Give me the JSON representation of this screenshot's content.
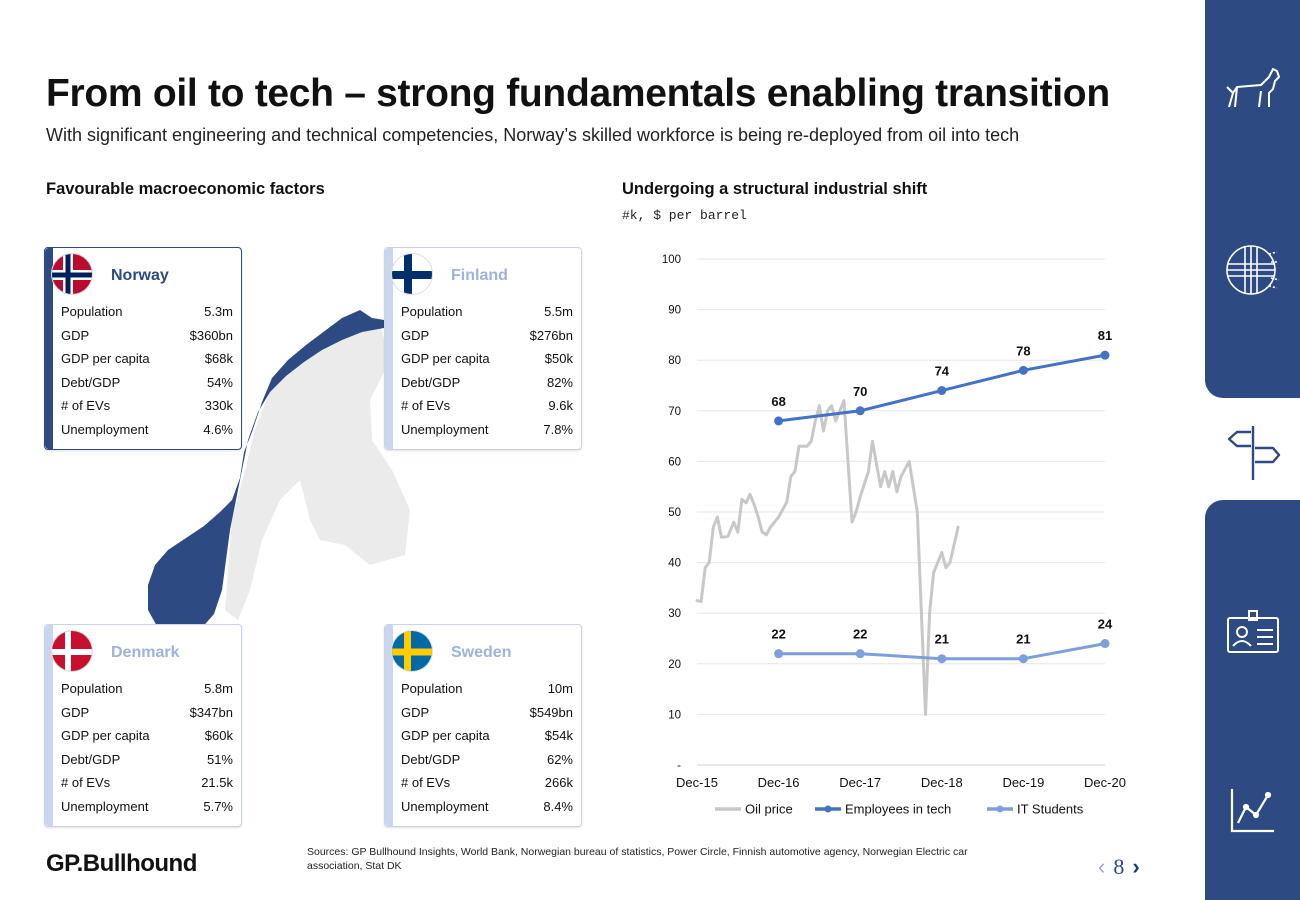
{
  "header": {
    "title": "From oil to tech – strong fundamentals enabling transition",
    "subtitle": "With significant engineering and technical competencies, Norway’s skilled workforce is being re-deployed from oil into tech"
  },
  "left_section": {
    "title": "Favourable macroeconomic factors"
  },
  "right_section": {
    "title": "Undergoing a structural industrial shift",
    "units": "#k, $ per barrel"
  },
  "countries": {
    "norway": {
      "name": "Norway",
      "rows": [
        [
          "Population",
          "5.3m"
        ],
        [
          "GDP",
          "$360bn"
        ],
        [
          "GDP per capita",
          "$68k"
        ],
        [
          "Debt/GDP",
          "54%"
        ],
        [
          "# of EVs",
          "330k"
        ],
        [
          "Unemployment",
          "4.6%"
        ]
      ]
    },
    "finland": {
      "name": "Finland",
      "rows": [
        [
          "Population",
          "5.5m"
        ],
        [
          "GDP",
          "$276bn"
        ],
        [
          "GDP per capita",
          "$50k"
        ],
        [
          "Debt/GDP",
          "82%"
        ],
        [
          "# of EVs",
          "9.6k"
        ],
        [
          "Unemployment",
          "7.8%"
        ]
      ]
    },
    "denmark": {
      "name": "Denmark",
      "rows": [
        [
          "Population",
          "5.8m"
        ],
        [
          "GDP",
          "$347bn"
        ],
        [
          "GDP per capita",
          "$60k"
        ],
        [
          "Debt/GDP",
          "51%"
        ],
        [
          "# of EVs",
          "21.5k"
        ],
        [
          "Unemployment",
          "5.7%"
        ]
      ]
    },
    "sweden": {
      "name": "Sweden",
      "rows": [
        [
          "Population",
          "10m"
        ],
        [
          "GDP",
          "$549bn"
        ],
        [
          "GDP per capita",
          "$54k"
        ],
        [
          "Debt/GDP",
          "62%"
        ],
        [
          "# of EVs",
          "266k"
        ],
        [
          "Unemployment",
          "8.4%"
        ]
      ]
    }
  },
  "colors": {
    "highlight_country": "#2d4a82",
    "muted_country": "#9db2dc",
    "map_other": "#ebebeb",
    "oil": "#c8c8c8",
    "employees": "#4472c4",
    "students": "#7d9fdb",
    "sidebar": "#2d4a82"
  },
  "chart_data": {
    "type": "line",
    "x_ticks": [
      "Dec-15",
      "Dec-16",
      "Dec-17",
      "Dec-18",
      "Dec-19",
      "Dec-20"
    ],
    "y_ticks": [
      "-",
      "10",
      "20",
      "30",
      "40",
      "50",
      "60",
      "70",
      "80",
      "90",
      "100"
    ],
    "ylim": [
      0,
      100
    ],
    "series": [
      {
        "name": "Oil price",
        "color": "#c8c8c8",
        "labels": false,
        "points": [
          [
            0,
            32.5
          ],
          [
            0.05,
            32.3
          ],
          [
            0.1,
            39
          ],
          [
            0.15,
            40
          ],
          [
            0.2,
            47
          ],
          [
            0.25,
            49
          ],
          [
            0.3,
            45
          ],
          [
            0.38,
            45.2
          ],
          [
            0.45,
            48
          ],
          [
            0.5,
            46
          ],
          [
            0.55,
            52.5
          ],
          [
            0.6,
            51.8
          ],
          [
            0.65,
            53.5
          ],
          [
            0.7,
            51.5
          ],
          [
            0.75,
            49
          ],
          [
            0.8,
            46
          ],
          [
            0.85,
            45.5
          ],
          [
            0.9,
            47
          ],
          [
            1.0,
            49
          ],
          [
            1.1,
            52
          ],
          [
            1.15,
            57
          ],
          [
            1.2,
            58
          ],
          [
            1.25,
            63
          ],
          [
            1.35,
            63
          ],
          [
            1.4,
            64
          ],
          [
            1.45,
            68
          ],
          [
            1.5,
            71
          ],
          [
            1.55,
            66
          ],
          [
            1.6,
            70
          ],
          [
            1.65,
            71
          ],
          [
            1.7,
            68
          ],
          [
            1.75,
            70
          ],
          [
            1.8,
            72
          ],
          [
            1.85,
            60
          ],
          [
            1.9,
            48
          ],
          [
            1.95,
            50
          ],
          [
            2.0,
            53
          ],
          [
            2.1,
            58
          ],
          [
            2.15,
            64
          ],
          [
            2.25,
            55
          ],
          [
            2.3,
            58
          ],
          [
            2.35,
            55
          ],
          [
            2.4,
            58
          ],
          [
            2.45,
            54
          ],
          [
            2.5,
            57
          ],
          [
            2.6,
            60
          ],
          [
            2.7,
            50
          ],
          [
            2.75,
            30
          ],
          [
            2.8,
            10
          ],
          [
            2.85,
            30
          ],
          [
            2.9,
            38
          ],
          [
            2.95,
            40
          ],
          [
            3.0,
            42
          ],
          [
            3.05,
            39
          ],
          [
            3.1,
            40
          ],
          [
            3.2,
            47
          ]
        ]
      },
      {
        "name": "Employees in tech",
        "color": "#4472c4",
        "labels": true,
        "points": [
          [
            1,
            68
          ],
          [
            2,
            70
          ],
          [
            3,
            74
          ],
          [
            4,
            78
          ],
          [
            5,
            81
          ]
        ],
        "display": [
          "68",
          "70",
          "74",
          "78",
          "81"
        ]
      },
      {
        "name": "IT Students",
        "color": "#7d9fdb",
        "labels": true,
        "points": [
          [
            1,
            22
          ],
          [
            2,
            22
          ],
          [
            3,
            21
          ],
          [
            4,
            21
          ],
          [
            5,
            24
          ]
        ],
        "display": [
          "22",
          "22",
          "21",
          "21",
          "24"
        ]
      }
    ]
  },
  "sources": "Sources: GP Bullhound Insights, World Bank, Norwegian bureau of statistics, Power Circle, Finnish automotive agency, Norwegian Electric car association, Stat DK",
  "footer": {
    "logo": "GP.Bullhound",
    "page": "8",
    "prev": "‹",
    "next": "›"
  },
  "sidebar": {
    "icons": [
      "dog-icon",
      "fingerprint-flag-icon",
      "signpost-icon",
      "id-card-icon",
      "line-chart-icon"
    ],
    "active": "signpost-icon"
  }
}
